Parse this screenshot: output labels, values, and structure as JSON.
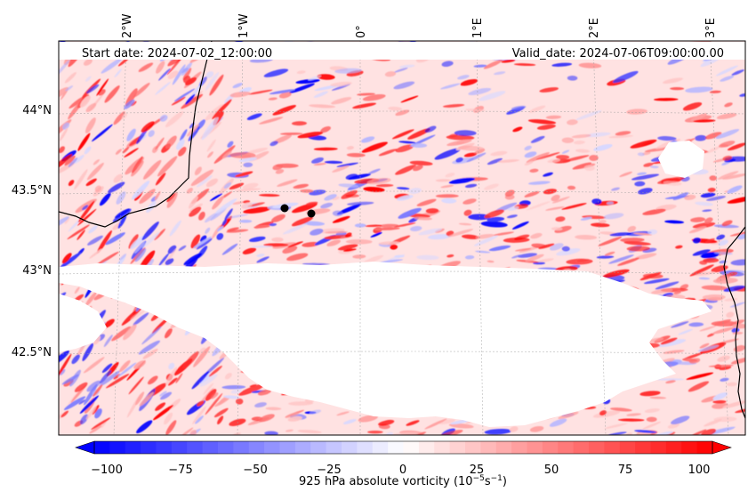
{
  "map": {
    "start_label": "Start date: 2024-07-02_12:00:00",
    "valid_label": "Valid_date: 2024-07-06T09:00:00.00",
    "lon_ticks": [
      "2°W",
      "1°W",
      "0°",
      "1°E",
      "2°E",
      "3°E"
    ],
    "lat_ticks": [
      "44°N",
      "43.5°N",
      "43°N",
      "42.5°N"
    ],
    "colorbar": {
      "ticks": [
        "−100",
        "−75",
        "−50",
        "−25",
        "0",
        "25",
        "50",
        "75",
        "100"
      ],
      "label": "925 hPa absolute vorticity (10",
      "label_exp1": "−5",
      "label_mid": "s",
      "label_exp2": "−1",
      "label_end": ")",
      "colors": {
        "negative": "#0000ff",
        "zero": "#ffffff",
        "positive": "#ff0000"
      }
    },
    "markers": "2 black location dots",
    "missing_data_region": "white masked area in the center (no data)"
  }
}
